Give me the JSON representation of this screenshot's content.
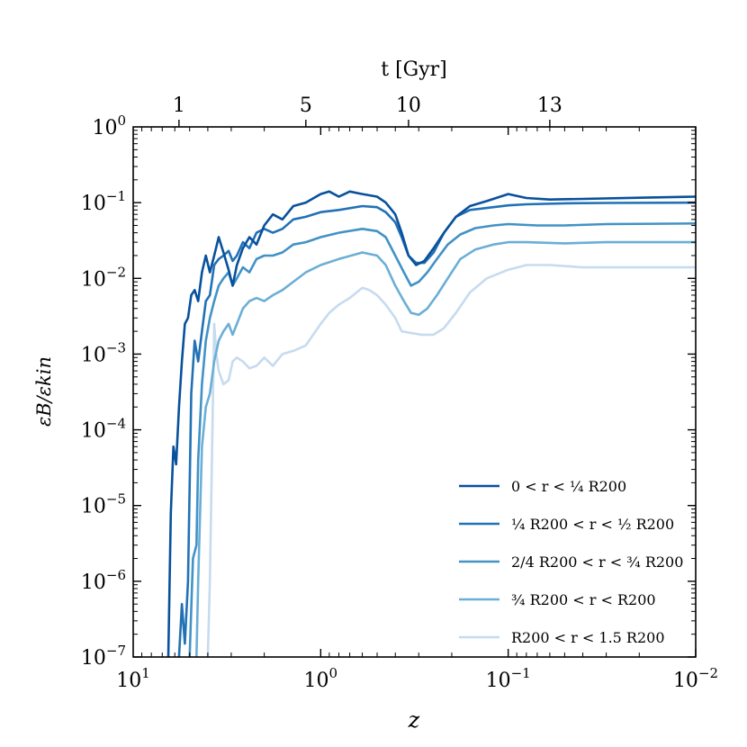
{
  "chart_data": {
    "type": "line",
    "title": "",
    "xlabel": "z",
    "ylabel": "εB/εkin",
    "xscale": "log",
    "yscale": "log",
    "xlim": [
      10,
      0.01
    ],
    "ylim": [
      1e-07,
      1
    ],
    "x_ticks": [
      {
        "value": 10,
        "base": "10",
        "exp": "1"
      },
      {
        "value": 1,
        "base": "10",
        "exp": "0"
      },
      {
        "value": 0.1,
        "base": "10",
        "exp": "−1"
      },
      {
        "value": 0.01,
        "base": "10",
        "exp": "−2"
      }
    ],
    "y_ticks": [
      {
        "value": 1,
        "base": "10",
        "exp": "0"
      },
      {
        "value": 0.1,
        "base": "10",
        "exp": "−1"
      },
      {
        "value": 0.01,
        "base": "10",
        "exp": "−2"
      },
      {
        "value": 0.001,
        "base": "10",
        "exp": "−3"
      },
      {
        "value": 0.0001,
        "base": "10",
        "exp": "−4"
      },
      {
        "value": 1e-05,
        "base": "10",
        "exp": "−5"
      },
      {
        "value": 1e-06,
        "base": "10",
        "exp": "−6"
      },
      {
        "value": 1e-07,
        "base": "10",
        "exp": "−7"
      }
    ],
    "top_axis": {
      "label": "t [Gyr]",
      "ticks": [
        {
          "label": "1",
          "z": 5.7
        },
        {
          "label": "5",
          "z": 1.2
        },
        {
          "label": "10",
          "z": 0.34
        },
        {
          "label": "13",
          "z": 0.06
        }
      ]
    },
    "legend_position": "lower-right",
    "series": [
      {
        "name": "0 < r < ¼ R200",
        "color": "#08519c",
        "points": [
          [
            6.5,
            1e-07
          ],
          [
            6.3,
            8e-06
          ],
          [
            6.1,
            6e-05
          ],
          [
            5.9,
            3.5e-05
          ],
          [
            5.7,
            0.0002
          ],
          [
            5.5,
            0.0008
          ],
          [
            5.3,
            0.0025
          ],
          [
            5.1,
            0.003
          ],
          [
            4.9,
            0.006
          ],
          [
            4.7,
            0.007
          ],
          [
            4.5,
            0.005
          ],
          [
            4.3,
            0.012
          ],
          [
            4.1,
            0.02
          ],
          [
            3.9,
            0.012
          ],
          [
            3.7,
            0.02
          ],
          [
            3.5,
            0.035
          ],
          [
            3.3,
            0.022
          ],
          [
            3.1,
            0.013
          ],
          [
            2.95,
            0.008
          ],
          [
            2.8,
            0.015
          ],
          [
            2.6,
            0.025
          ],
          [
            2.4,
            0.035
          ],
          [
            2.2,
            0.028
          ],
          [
            2.0,
            0.05
          ],
          [
            1.8,
            0.07
          ],
          [
            1.6,
            0.06
          ],
          [
            1.4,
            0.09
          ],
          [
            1.2,
            0.1
          ],
          [
            1.0,
            0.13
          ],
          [
            0.9,
            0.14
          ],
          [
            0.8,
            0.12
          ],
          [
            0.7,
            0.14
          ],
          [
            0.6,
            0.13
          ],
          [
            0.5,
            0.12
          ],
          [
            0.45,
            0.1
          ],
          [
            0.4,
            0.07
          ],
          [
            0.37,
            0.04
          ],
          [
            0.34,
            0.02
          ],
          [
            0.31,
            0.015
          ],
          [
            0.28,
            0.017
          ],
          [
            0.25,
            0.025
          ],
          [
            0.22,
            0.04
          ],
          [
            0.19,
            0.065
          ],
          [
            0.16,
            0.09
          ],
          [
            0.13,
            0.105
          ],
          [
            0.1,
            0.13
          ],
          [
            0.08,
            0.115
          ],
          [
            0.06,
            0.11
          ],
          [
            0.04,
            0.112
          ],
          [
            0.02,
            0.116
          ],
          [
            0.01,
            0.12
          ]
        ]
      },
      {
        "name": "¼ R200 < r < ½ R200",
        "color": "#2171b5",
        "points": [
          [
            5.7,
            1e-07
          ],
          [
            5.5,
            5e-07
          ],
          [
            5.3,
            1.5e-07
          ],
          [
            5.1,
            1e-06
          ],
          [
            4.9,
            0.0003
          ],
          [
            4.7,
            0.0015
          ],
          [
            4.5,
            0.0008
          ],
          [
            4.3,
            0.002
          ],
          [
            4.1,
            0.005
          ],
          [
            3.9,
            0.006
          ],
          [
            3.7,
            0.015
          ],
          [
            3.5,
            0.018
          ],
          [
            3.3,
            0.02
          ],
          [
            3.1,
            0.023
          ],
          [
            2.95,
            0.017
          ],
          [
            2.8,
            0.02
          ],
          [
            2.6,
            0.03
          ],
          [
            2.4,
            0.025
          ],
          [
            2.2,
            0.04
          ],
          [
            2.0,
            0.045
          ],
          [
            1.8,
            0.04
          ],
          [
            1.6,
            0.045
          ],
          [
            1.4,
            0.06
          ],
          [
            1.2,
            0.065
          ],
          [
            1.0,
            0.075
          ],
          [
            0.8,
            0.08
          ],
          [
            0.6,
            0.09
          ],
          [
            0.5,
            0.087
          ],
          [
            0.45,
            0.075
          ],
          [
            0.4,
            0.055
          ],
          [
            0.37,
            0.035
          ],
          [
            0.34,
            0.02
          ],
          [
            0.31,
            0.016
          ],
          [
            0.28,
            0.016
          ],
          [
            0.25,
            0.022
          ],
          [
            0.22,
            0.04
          ],
          [
            0.19,
            0.065
          ],
          [
            0.16,
            0.08
          ],
          [
            0.13,
            0.085
          ],
          [
            0.1,
            0.092
          ],
          [
            0.08,
            0.095
          ],
          [
            0.05,
            0.098
          ],
          [
            0.03,
            0.099
          ],
          [
            0.01,
            0.1
          ]
        ]
      },
      {
        "name": "2/4 R200 < r < ¾ R200",
        "color": "#4292c6",
        "points": [
          [
            5.0,
            1e-07
          ],
          [
            4.8,
            2e-06
          ],
          [
            4.6,
            3e-06
          ],
          [
            4.5,
            4e-05
          ],
          [
            4.3,
            0.0004
          ],
          [
            4.1,
            0.0015
          ],
          [
            3.9,
            0.003
          ],
          [
            3.7,
            0.005
          ],
          [
            3.5,
            0.008
          ],
          [
            3.3,
            0.01
          ],
          [
            3.1,
            0.012
          ],
          [
            2.95,
            0.008
          ],
          [
            2.8,
            0.01
          ],
          [
            2.6,
            0.014
          ],
          [
            2.4,
            0.012
          ],
          [
            2.2,
            0.018
          ],
          [
            2.0,
            0.02
          ],
          [
            1.8,
            0.02
          ],
          [
            1.6,
            0.022
          ],
          [
            1.4,
            0.028
          ],
          [
            1.2,
            0.03
          ],
          [
            1.0,
            0.035
          ],
          [
            0.8,
            0.04
          ],
          [
            0.6,
            0.045
          ],
          [
            0.5,
            0.042
          ],
          [
            0.45,
            0.035
          ],
          [
            0.4,
            0.02
          ],
          [
            0.36,
            0.012
          ],
          [
            0.33,
            0.008
          ],
          [
            0.3,
            0.009
          ],
          [
            0.27,
            0.012
          ],
          [
            0.24,
            0.018
          ],
          [
            0.21,
            0.028
          ],
          [
            0.18,
            0.038
          ],
          [
            0.15,
            0.046
          ],
          [
            0.12,
            0.05
          ],
          [
            0.1,
            0.052
          ],
          [
            0.07,
            0.05
          ],
          [
            0.05,
            0.05
          ],
          [
            0.03,
            0.052
          ],
          [
            0.01,
            0.053
          ]
        ]
      },
      {
        "name": "¾ R200 < r < R200",
        "color": "#6baed6",
        "points": [
          [
            4.6,
            1e-07
          ],
          [
            4.5,
            1e-06
          ],
          [
            4.3,
            6e-05
          ],
          [
            4.1,
            0.0002
          ],
          [
            3.9,
            0.0003
          ],
          [
            3.7,
            0.0008
          ],
          [
            3.5,
            0.0015
          ],
          [
            3.3,
            0.002
          ],
          [
            3.1,
            0.0025
          ],
          [
            2.95,
            0.0018
          ],
          [
            2.8,
            0.0025
          ],
          [
            2.6,
            0.004
          ],
          [
            2.4,
            0.005
          ],
          [
            2.2,
            0.0055
          ],
          [
            2.0,
            0.005
          ],
          [
            1.8,
            0.006
          ],
          [
            1.6,
            0.007
          ],
          [
            1.4,
            0.009
          ],
          [
            1.2,
            0.012
          ],
          [
            1.0,
            0.015
          ],
          [
            0.8,
            0.018
          ],
          [
            0.6,
            0.022
          ],
          [
            0.5,
            0.02
          ],
          [
            0.45,
            0.015
          ],
          [
            0.4,
            0.008
          ],
          [
            0.36,
            0.005
          ],
          [
            0.33,
            0.0035
          ],
          [
            0.3,
            0.0033
          ],
          [
            0.27,
            0.004
          ],
          [
            0.24,
            0.006
          ],
          [
            0.21,
            0.01
          ],
          [
            0.18,
            0.018
          ],
          [
            0.15,
            0.024
          ],
          [
            0.12,
            0.028
          ],
          [
            0.1,
            0.03
          ],
          [
            0.08,
            0.03
          ],
          [
            0.05,
            0.029
          ],
          [
            0.03,
            0.03
          ],
          [
            0.01,
            0.03
          ]
        ]
      },
      {
        "name": "R200 < r < 1.5 R200",
        "color": "#c6dbef",
        "points": [
          [
            4.0,
            1e-07
          ],
          [
            3.9,
            1e-06
          ],
          [
            3.7,
            0.0025
          ],
          [
            3.6,
            0.001
          ],
          [
            3.5,
            0.0006
          ],
          [
            3.3,
            0.0004
          ],
          [
            3.1,
            0.00045
          ],
          [
            2.95,
            0.0008
          ],
          [
            2.8,
            0.0009
          ],
          [
            2.6,
            0.0008
          ],
          [
            2.4,
            0.00065
          ],
          [
            2.2,
            0.0007
          ],
          [
            2.0,
            0.0009
          ],
          [
            1.8,
            0.0007
          ],
          [
            1.6,
            0.001
          ],
          [
            1.4,
            0.0011
          ],
          [
            1.2,
            0.0013
          ],
          [
            1.0,
            0.0025
          ],
          [
            0.9,
            0.0035
          ],
          [
            0.8,
            0.0045
          ],
          [
            0.7,
            0.0055
          ],
          [
            0.6,
            0.0075
          ],
          [
            0.55,
            0.007
          ],
          [
            0.5,
            0.006
          ],
          [
            0.45,
            0.0045
          ],
          [
            0.4,
            0.003
          ],
          [
            0.37,
            0.002
          ],
          [
            0.33,
            0.0019
          ],
          [
            0.29,
            0.0018
          ],
          [
            0.25,
            0.0018
          ],
          [
            0.22,
            0.0022
          ],
          [
            0.19,
            0.0035
          ],
          [
            0.16,
            0.0065
          ],
          [
            0.13,
            0.01
          ],
          [
            0.1,
            0.013
          ],
          [
            0.08,
            0.015
          ],
          [
            0.06,
            0.015
          ],
          [
            0.04,
            0.014
          ],
          [
            0.02,
            0.014
          ],
          [
            0.01,
            0.014
          ]
        ]
      }
    ]
  }
}
